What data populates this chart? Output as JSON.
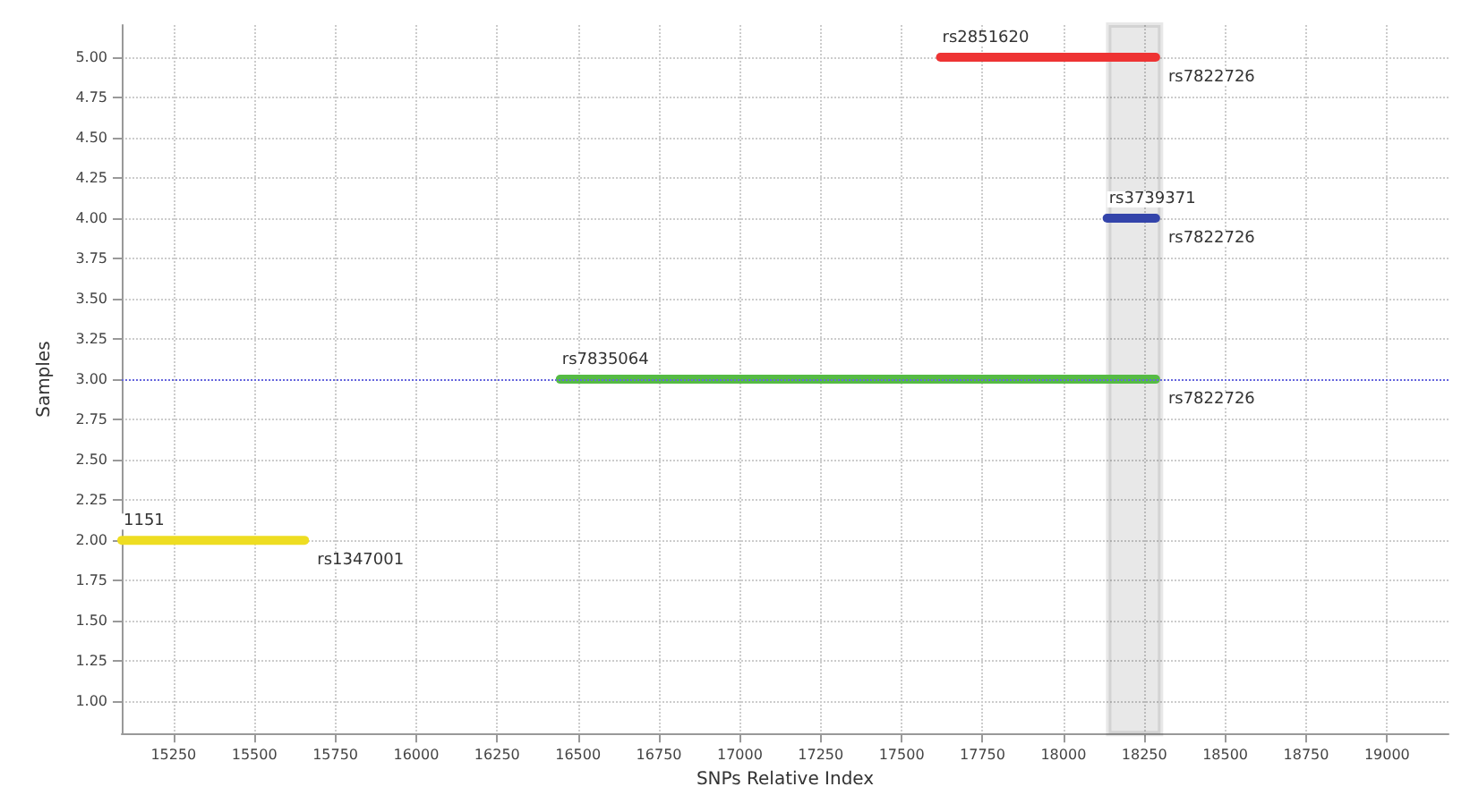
{
  "chart_data": {
    "type": "line",
    "xlabel": "SNPs Relative Index",
    "ylabel": "Samples",
    "xlim": [
      15090,
      19190
    ],
    "ylim": [
      0.8,
      5.2
    ],
    "xticks": [
      15250,
      15500,
      15750,
      16000,
      16250,
      16500,
      16750,
      17000,
      17250,
      17500,
      17750,
      18000,
      18250,
      18500,
      18750,
      19000
    ],
    "yticks": [
      {
        "value": 1,
        "label": "1.00"
      },
      {
        "value": 1.25,
        "label": "1.25"
      },
      {
        "value": 1.5,
        "label": "1.50"
      },
      {
        "value": 1.75,
        "label": "1.75"
      },
      {
        "value": 2,
        "label": "2.00"
      },
      {
        "value": 2.25,
        "label": "2.25"
      },
      {
        "value": 2.5,
        "label": "2.50"
      },
      {
        "value": 2.75,
        "label": "2.75"
      },
      {
        "value": 3,
        "label": "3.00"
      },
      {
        "value": 3.25,
        "label": "3.25"
      },
      {
        "value": 3.5,
        "label": "3.50"
      },
      {
        "value": 3.75,
        "label": "3.75"
      },
      {
        "value": 4,
        "label": "4.00"
      },
      {
        "value": 4.25,
        "label": "4.25"
      },
      {
        "value": 4.5,
        "label": "4.50"
      },
      {
        "value": 4.75,
        "label": "4.75"
      },
      {
        "value": 5,
        "label": "5.00"
      }
    ],
    "grid": true,
    "marker": "none",
    "line_style": "solid",
    "series": [
      {
        "color": "#ee3333",
        "x": [
          17620,
          18285
        ],
        "values": [
          5,
          5
        ]
      },
      {
        "color": "#3344aa",
        "x": [
          18135,
          18285
        ],
        "values": [
          4,
          4
        ]
      },
      {
        "color": "#55bb44",
        "x": [
          16445,
          18285
        ],
        "values": [
          3,
          3
        ]
      },
      {
        "color": "#eedd22",
        "x": [
          15090,
          15655
        ],
        "values": [
          2,
          2
        ]
      }
    ],
    "ref_lines": [
      {
        "axis": "y",
        "value": 3,
        "color": "#6666dd",
        "line_style": "dotted"
      }
    ],
    "bands": [
      {
        "axis": "x",
        "from": 18140,
        "to": 18300,
        "color": "#222222"
      }
    ],
    "annotations": [
      {
        "text": "rs2851620",
        "x": 17620,
        "y": 5
      },
      {
        "text": "rs7822726",
        "x": 18285,
        "y": 5
      },
      {
        "text": "rs3739371",
        "x": 18135,
        "y": 4
      },
      {
        "text": "rs7822726",
        "x": 18285,
        "y": 4
      },
      {
        "text": "rs7835064",
        "x": 16445,
        "y": 3
      },
      {
        "text": "rs7822726",
        "x": 18285,
        "y": 3
      },
      {
        "text": "1151",
        "x": 15090,
        "y": 2
      },
      {
        "text": "rs1347001",
        "x": 15655,
        "y": 2
      }
    ]
  }
}
